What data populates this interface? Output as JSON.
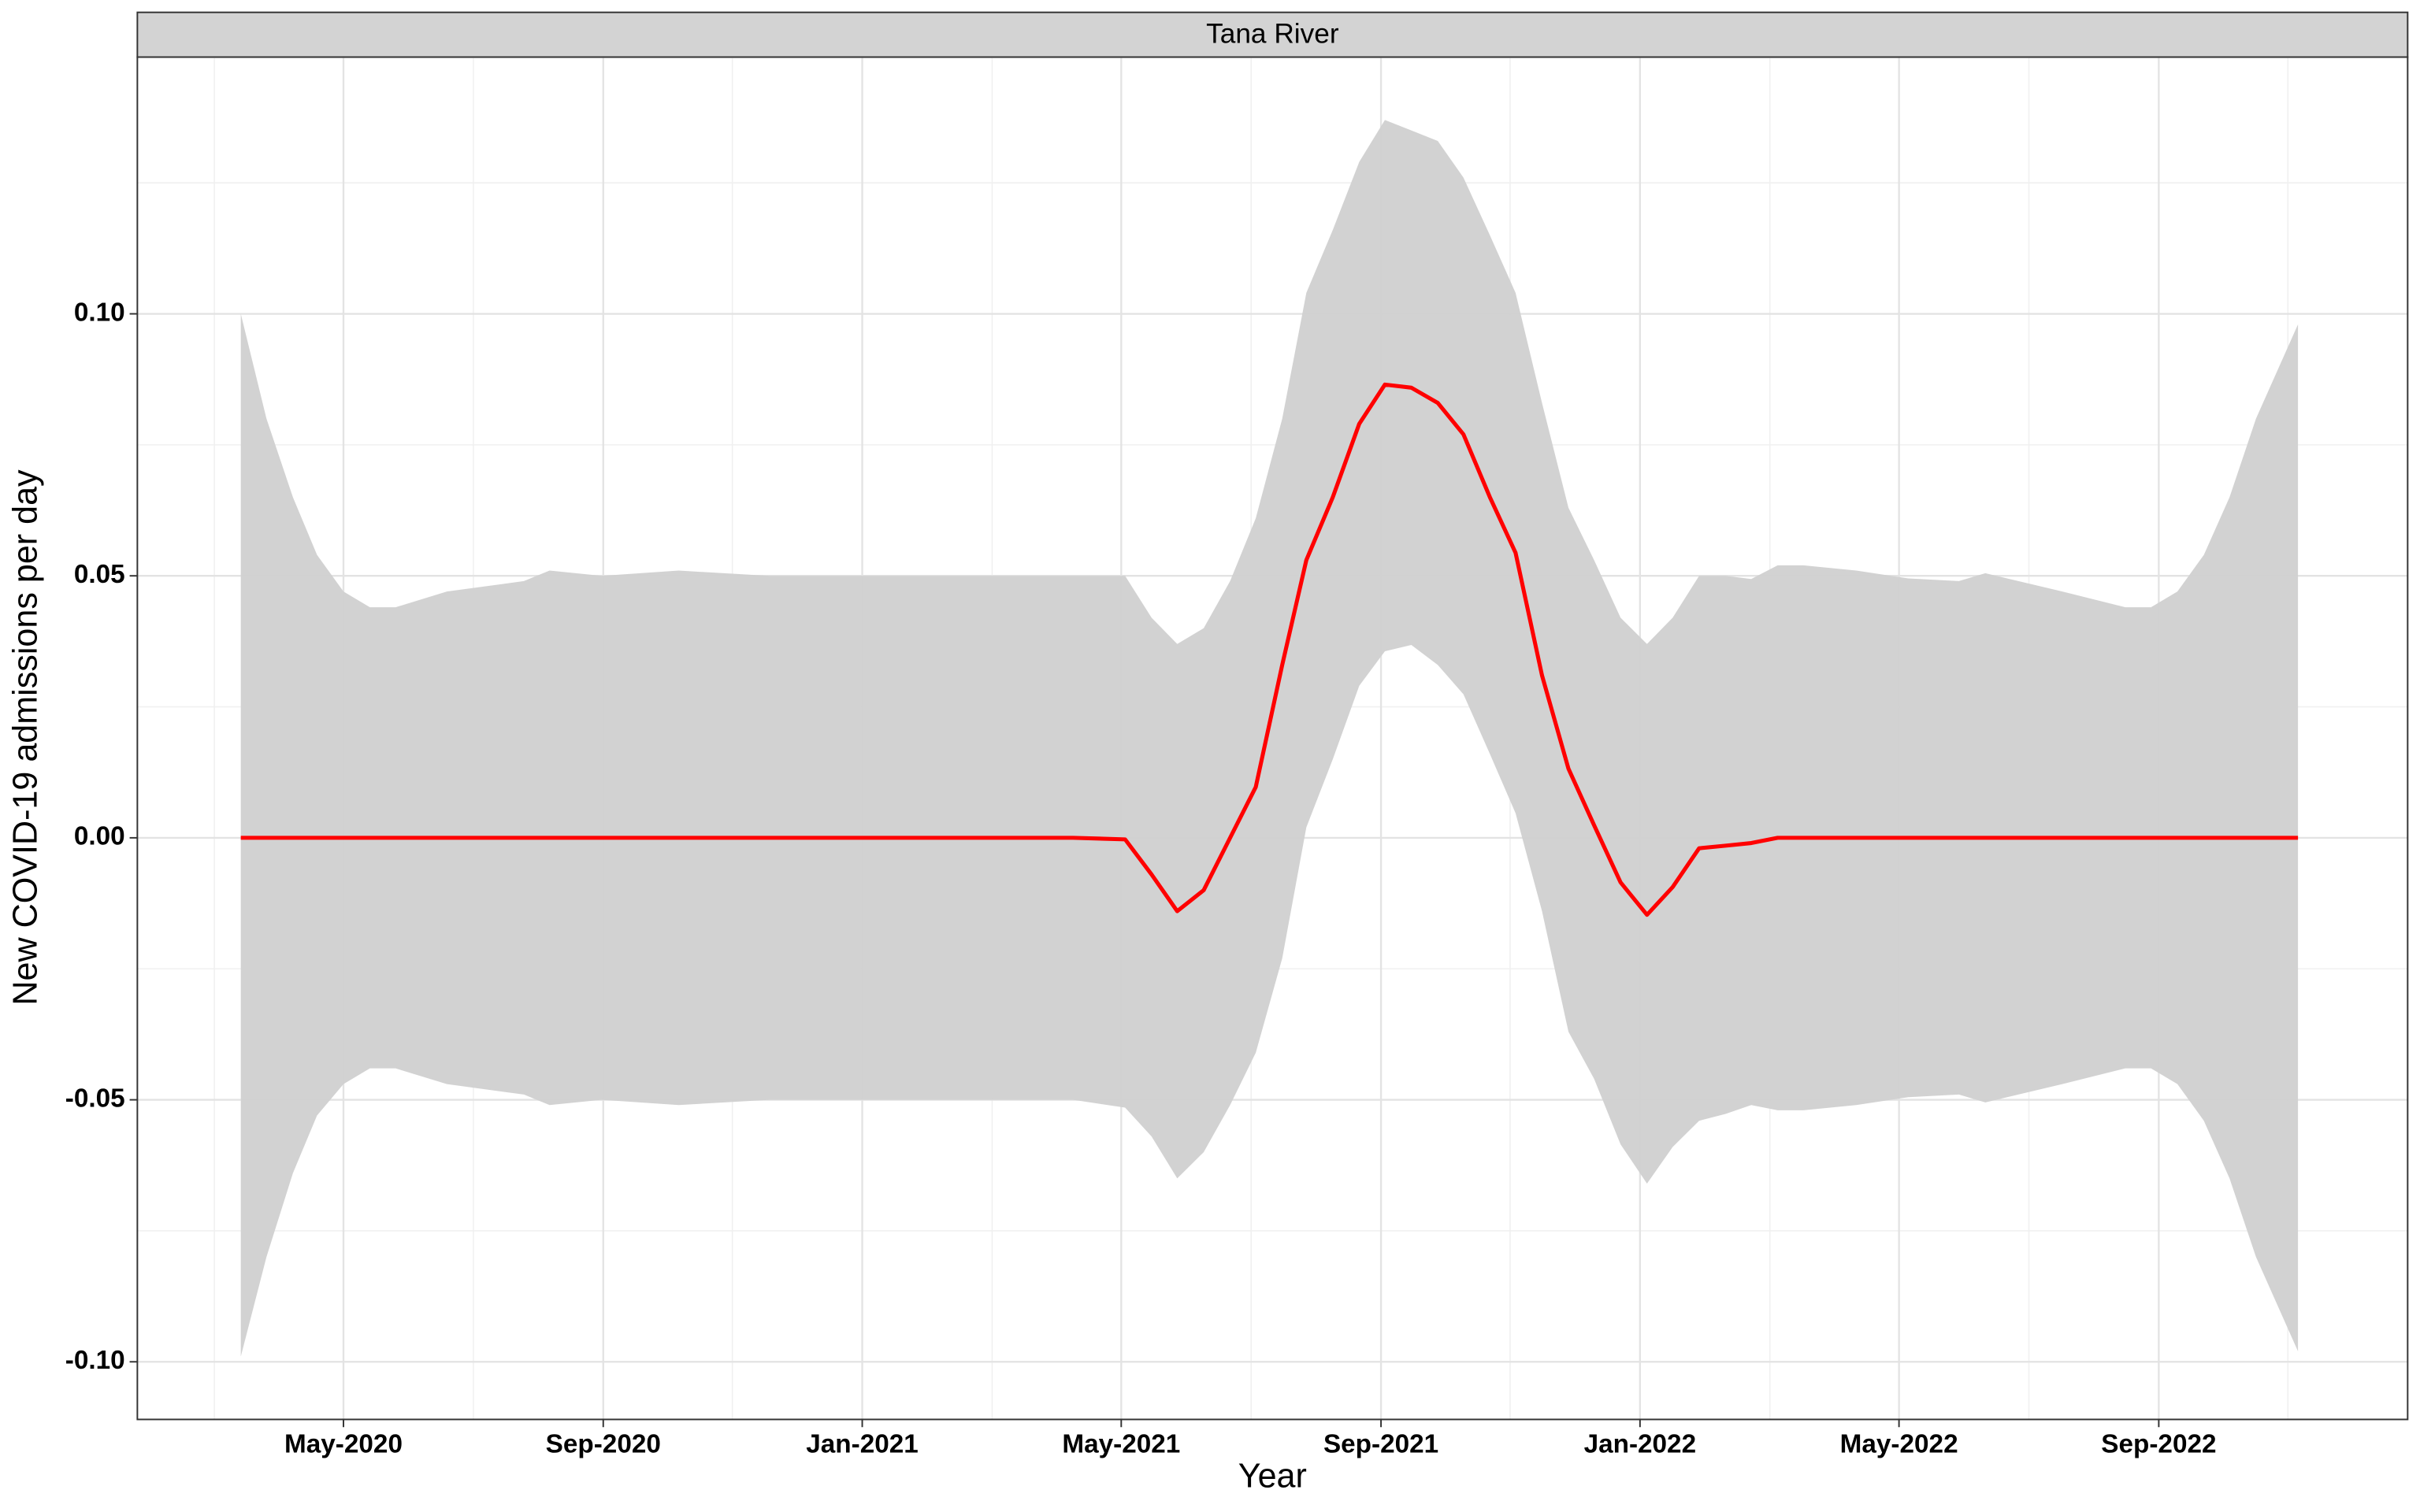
{
  "chart_data": {
    "type": "line",
    "panel_title": "Tana River",
    "x_label": "Year",
    "y_label": "New COVID-19 admissions per day",
    "x": [
      2020.201,
      2020.234,
      2020.268,
      2020.299,
      2020.333,
      2020.367,
      2020.4,
      2020.466,
      2020.565,
      2020.598,
      2020.665,
      2020.764,
      2020.881,
      2021.0,
      2021.198,
      2021.271,
      2021.338,
      2021.372,
      2021.405,
      2021.439,
      2021.473,
      2021.506,
      2021.54,
      2021.571,
      2021.605,
      2021.639,
      2021.672,
      2021.706,
      2021.74,
      2021.773,
      2021.807,
      2021.84,
      2021.874,
      2021.908,
      2021.941,
      2021.975,
      2022.009,
      2022.042,
      2022.076,
      2022.11,
      2022.143,
      2022.177,
      2022.21,
      2022.278,
      2022.345,
      2022.41,
      2022.444,
      2022.543,
      2022.624,
      2022.657,
      2022.691,
      2022.725,
      2022.758,
      2022.792,
      2022.846
    ],
    "series": [
      {
        "name": "mean",
        "color": "#ff0000",
        "values": [
          0,
          0,
          0,
          0,
          0,
          0,
          0,
          0,
          0,
          0,
          0,
          0,
          0,
          0,
          0,
          0,
          -0.0003,
          -0.007,
          -0.014,
          -0.01,
          0.0,
          0.0097,
          0.033,
          0.053,
          0.065,
          0.079,
          0.0865,
          0.0859,
          0.083,
          0.077,
          0.065,
          0.0544,
          0.031,
          0.0132,
          0.0024,
          -0.0085,
          -0.0147,
          -0.0094,
          -0.002,
          -0.0015,
          -0.001,
          0,
          0,
          0,
          0,
          0,
          0,
          0,
          0,
          0,
          0,
          0,
          0,
          0,
          0
        ]
      }
    ],
    "band": {
      "color": "#d0d0d0",
      "upper": [
        0.1,
        0.08,
        0.065,
        0.054,
        0.047,
        0.044,
        0.044,
        0.047,
        0.049,
        0.051,
        0.05,
        0.051,
        0.05,
        0.05,
        0.05,
        0.05,
        0.05,
        0.042,
        0.037,
        0.04,
        0.049,
        0.061,
        0.08,
        0.104,
        0.116,
        0.129,
        0.137,
        0.135,
        0.133,
        0.126,
        0.115,
        0.104,
        0.083,
        0.063,
        0.053,
        0.042,
        0.037,
        0.042,
        0.05,
        0.05,
        0.0494,
        0.052,
        0.052,
        0.051,
        0.0495,
        0.049,
        0.0505,
        0.047,
        0.044,
        0.044,
        0.047,
        0.054,
        0.065,
        0.08,
        0.098
      ],
      "lower": [
        -0.099,
        -0.08,
        -0.064,
        -0.053,
        -0.047,
        -0.044,
        -0.044,
        -0.047,
        -0.049,
        -0.051,
        -0.05,
        -0.051,
        -0.05,
        -0.05,
        -0.05,
        -0.05,
        -0.0515,
        -0.057,
        -0.065,
        -0.06,
        -0.051,
        -0.041,
        -0.023,
        0.002,
        0.015,
        0.029,
        0.0356,
        0.0368,
        0.033,
        0.0274,
        0.016,
        0.0047,
        -0.014,
        -0.037,
        -0.046,
        -0.0585,
        -0.066,
        -0.059,
        -0.054,
        -0.0527,
        -0.051,
        -0.052,
        -0.052,
        -0.051,
        -0.0495,
        -0.049,
        -0.0505,
        -0.047,
        -0.044,
        -0.044,
        -0.047,
        -0.054,
        -0.065,
        -0.08,
        -0.098
      ]
    },
    "xlim": [
      2020.068,
      2022.987
    ],
    "ylim": [
      -0.111,
      0.149
    ],
    "xticks": [
      {
        "value": 2020.333,
        "label": "May-2020"
      },
      {
        "value": 2020.667,
        "label": "Sep-2020"
      },
      {
        "value": 2021.0,
        "label": "Jan-2021"
      },
      {
        "value": 2021.333,
        "label": "May-2021"
      },
      {
        "value": 2021.667,
        "label": "Sep-2021"
      },
      {
        "value": 2022.0,
        "label": "Jan-2022"
      },
      {
        "value": 2022.333,
        "label": "May-2022"
      },
      {
        "value": 2022.667,
        "label": "Sep-2022"
      }
    ],
    "yticks": [
      {
        "value": -0.1,
        "label": "-0.10"
      },
      -0.05,
      {
        "value": 0,
        "label": "0.00"
      },
      0.05,
      {
        "value": 0.1,
        "label": "0.10"
      }
    ],
    "xminorticks": [
      2020.167,
      2020.5,
      2020.833,
      2021.167,
      2021.5,
      2021.833,
      2022.167,
      2022.5,
      2022.833
    ],
    "yminorticks": [
      -0.075,
      -0.025,
      0.025,
      0.075,
      0.125
    ],
    "grid": true
  }
}
